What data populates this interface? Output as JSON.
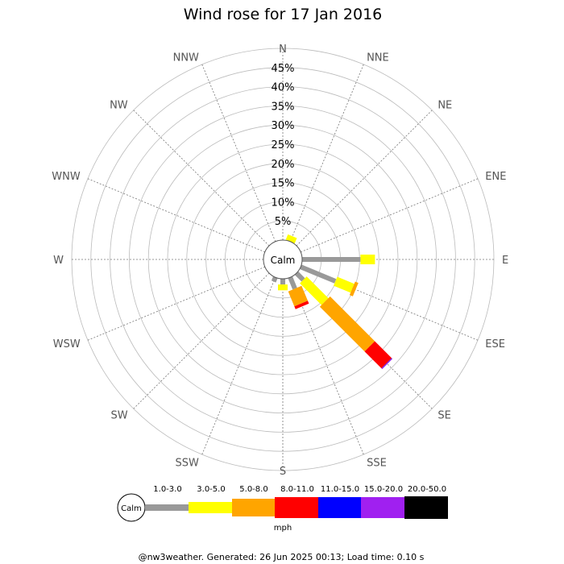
{
  "chart_data": {
    "type": "wind-rose",
    "title": "Wind rose for 17 Jan 2016",
    "calm_label": "Calm",
    "unit_label": "mph",
    "radial_ticks": [
      5,
      10,
      15,
      20,
      25,
      30,
      35,
      40,
      45
    ],
    "radial_tick_labels": [
      "5%",
      "10%",
      "15%",
      "20%",
      "25%",
      "30%",
      "35%",
      "40%",
      "45%"
    ],
    "radial_max": 50,
    "directions": [
      "N",
      "NNE",
      "NE",
      "ENE",
      "E",
      "ESE",
      "SE",
      "SSE",
      "S",
      "SSW",
      "SW",
      "WSW",
      "W",
      "WNW",
      "NW",
      "NNW"
    ],
    "bins": [
      {
        "range": "1.0-3.0",
        "color": "#999999"
      },
      {
        "range": "3.0-5.0",
        "color": "#ffff00"
      },
      {
        "range": "5.0-8.0",
        "color": "#ffa500"
      },
      {
        "range": "8.0-11.0",
        "color": "#ff0000"
      },
      {
        "range": "11.0-15.0",
        "color": "#0000ff"
      },
      {
        "range": "15.0-20.0",
        "color": "#a020f0"
      },
      {
        "range": "20.0-50.0",
        "color": "#000000"
      }
    ],
    "series": [
      {
        "direction": "N",
        "values": [
          0,
          0,
          0,
          0,
          0,
          0,
          0
        ]
      },
      {
        "direction": "NNE",
        "values": [
          0,
          1.5,
          0,
          0,
          0,
          0,
          0
        ]
      },
      {
        "direction": "NE",
        "values": [
          0,
          0,
          0,
          0,
          0,
          0,
          0
        ]
      },
      {
        "direction": "ENE",
        "values": [
          0,
          0,
          0,
          0,
          0,
          0,
          0
        ]
      },
      {
        "direction": "E",
        "values": [
          15.2,
          3.8,
          0,
          0,
          0,
          0,
          0
        ]
      },
      {
        "direction": "ESE",
        "values": [
          9.8,
          4.8,
          0.9,
          0,
          0,
          0,
          0
        ]
      },
      {
        "direction": "SE",
        "values": [
          2.5,
          8.0,
          16.5,
          6.2,
          0.1,
          0.2,
          0
        ]
      },
      {
        "direction": "SSE",
        "values": [
          3.2,
          0,
          4.2,
          0.8,
          0,
          0,
          0
        ]
      },
      {
        "direction": "S",
        "values": [
          1.5,
          1.5,
          0,
          0,
          0,
          0,
          0
        ]
      },
      {
        "direction": "SSW",
        "values": [
          1.2,
          0,
          0,
          0,
          0,
          0,
          0
        ]
      },
      {
        "direction": "SW",
        "values": [
          0,
          0,
          0,
          0,
          0,
          0,
          0
        ]
      },
      {
        "direction": "WSW",
        "values": [
          0,
          0,
          0,
          0,
          0,
          0,
          0
        ]
      },
      {
        "direction": "W",
        "values": [
          0,
          0,
          0,
          0,
          0,
          0,
          0
        ]
      },
      {
        "direction": "WNW",
        "values": [
          0,
          0,
          0,
          0,
          0,
          0,
          0
        ]
      },
      {
        "direction": "NW",
        "values": [
          0,
          0,
          0,
          0,
          0,
          0,
          0
        ]
      },
      {
        "direction": "NNW",
        "values": [
          0,
          0,
          0,
          0,
          0,
          0,
          0
        ]
      }
    ]
  },
  "footer": "@nw3weather. Generated: 26 Jun 2025 00:13; Load time: 0.10 s"
}
